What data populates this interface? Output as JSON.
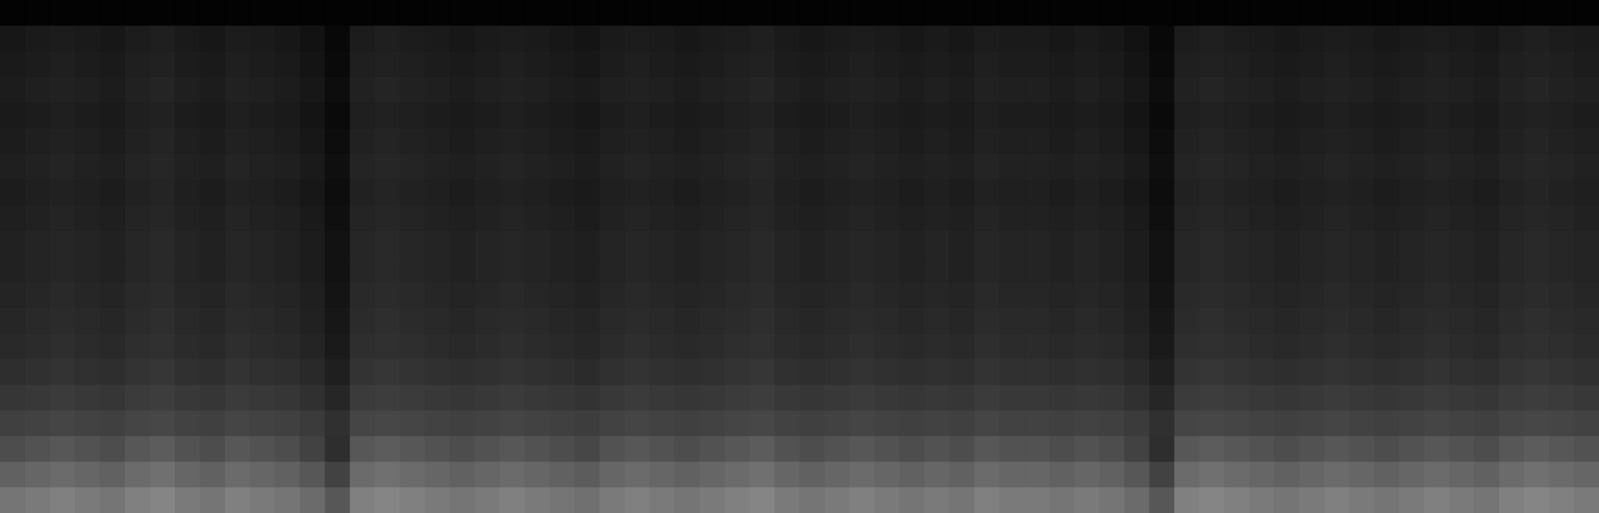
{
  "chart_data": {
    "type": "heatmap",
    "tick_labels": false,
    "zlim": [
      0,
      100
    ],
    "values": [
      [
        1,
        1,
        1,
        1,
        1,
        1,
        1,
        1,
        1,
        1,
        1,
        1,
        1,
        1,
        1,
        1,
        1,
        1,
        1,
        1,
        1,
        1,
        1,
        1,
        1,
        1,
        1,
        1,
        1,
        1,
        1,
        1,
        1,
        1,
        1,
        1,
        1,
        1,
        1,
        1,
        1,
        1,
        1,
        1,
        1,
        1,
        1,
        1,
        1,
        1,
        1,
        1,
        1,
        1,
        1,
        1,
        1,
        1,
        1,
        1,
        1,
        1,
        1,
        1
      ],
      [
        9,
        10,
        11,
        10,
        9,
        11,
        12,
        10,
        9,
        11,
        10,
        9,
        7,
        3,
        11,
        12,
        11,
        10,
        9,
        10,
        11,
        10,
        9,
        8,
        10,
        11,
        10,
        9,
        10,
        11,
        12,
        10,
        9,
        10,
        11,
        10,
        9,
        10,
        9,
        11,
        10,
        10,
        9,
        10,
        9,
        7,
        3,
        11,
        12,
        11,
        10,
        9,
        10,
        11,
        10,
        9,
        10,
        11,
        10,
        9,
        11,
        12,
        11,
        10
      ],
      [
        10,
        11,
        12,
        11,
        10,
        12,
        13,
        11,
        10,
        12,
        11,
        10,
        8,
        4,
        12,
        13,
        12,
        11,
        10,
        11,
        12,
        11,
        10,
        9,
        11,
        12,
        11,
        10,
        11,
        12,
        13,
        11,
        10,
        11,
        12,
        11,
        10,
        11,
        10,
        12,
        11,
        11,
        10,
        11,
        10,
        8,
        4,
        12,
        13,
        12,
        11,
        10,
        11,
        12,
        11,
        10,
        11,
        12,
        11,
        10,
        12,
        13,
        12,
        11
      ],
      [
        11,
        12,
        13,
        12,
        11,
        13,
        14,
        12,
        11,
        13,
        12,
        11,
        9,
        5,
        13,
        14,
        13,
        12,
        11,
        12,
        13,
        12,
        11,
        10,
        12,
        13,
        12,
        11,
        12,
        13,
        14,
        12,
        11,
        12,
        13,
        12,
        11,
        12,
        11,
        13,
        12,
        12,
        11,
        12,
        11,
        9,
        5,
        13,
        14,
        13,
        12,
        11,
        12,
        13,
        12,
        11,
        12,
        13,
        12,
        11,
        13,
        14,
        13,
        12
      ],
      [
        10,
        11,
        12,
        11,
        10,
        12,
        13,
        11,
        10,
        12,
        11,
        10,
        8,
        4,
        12,
        13,
        12,
        11,
        10,
        11,
        12,
        11,
        10,
        9,
        11,
        12,
        11,
        10,
        11,
        12,
        13,
        11,
        10,
        11,
        12,
        11,
        10,
        11,
        10,
        12,
        11,
        11,
        10,
        11,
        10,
        8,
        4,
        12,
        13,
        12,
        11,
        10,
        11,
        12,
        11,
        10,
        11,
        12,
        11,
        10,
        12,
        13,
        12,
        11
      ],
      [
        11,
        12,
        13,
        12,
        11,
        13,
        14,
        12,
        11,
        13,
        12,
        11,
        9,
        5,
        13,
        14,
        13,
        12,
        11,
        12,
        13,
        12,
        11,
        10,
        12,
        13,
        12,
        11,
        12,
        13,
        14,
        12,
        11,
        12,
        13,
        12,
        11,
        12,
        11,
        13,
        12,
        12,
        11,
        12,
        11,
        9,
        5,
        13,
        14,
        13,
        12,
        11,
        12,
        13,
        12,
        11,
        12,
        13,
        12,
        11,
        13,
        14,
        13,
        12
      ],
      [
        12,
        13,
        14,
        13,
        12,
        14,
        15,
        13,
        12,
        14,
        13,
        12,
        10,
        6,
        14,
        15,
        14,
        13,
        12,
        13,
        14,
        13,
        12,
        11,
        13,
        14,
        13,
        12,
        13,
        14,
        15,
        13,
        12,
        13,
        14,
        13,
        12,
        13,
        12,
        14,
        13,
        13,
        12,
        13,
        12,
        10,
        6,
        14,
        15,
        14,
        13,
        12,
        13,
        14,
        13,
        12,
        13,
        14,
        13,
        12,
        14,
        15,
        14,
        13
      ],
      [
        11,
        12,
        13,
        12,
        11,
        13,
        14,
        12,
        11,
        13,
        12,
        11,
        9,
        5,
        13,
        14,
        13,
        12,
        11,
        12,
        13,
        12,
        11,
        10,
        12,
        13,
        12,
        11,
        12,
        13,
        14,
        12,
        11,
        12,
        13,
        12,
        11,
        12,
        11,
        13,
        12,
        12,
        11,
        12,
        11,
        9,
        5,
        13,
        14,
        13,
        12,
        11,
        12,
        13,
        12,
        11,
        12,
        13,
        12,
        11,
        13,
        14,
        13,
        12
      ],
      [
        12,
        13,
        14,
        13,
        12,
        14,
        15,
        13,
        12,
        14,
        13,
        12,
        10,
        6,
        14,
        15,
        14,
        13,
        12,
        13,
        14,
        13,
        12,
        11,
        13,
        14,
        13,
        12,
        13,
        14,
        15,
        13,
        12,
        13,
        14,
        13,
        12,
        13,
        12,
        14,
        13,
        13,
        12,
        13,
        12,
        10,
        6,
        14,
        15,
        14,
        13,
        12,
        13,
        14,
        13,
        12,
        13,
        14,
        13,
        12,
        14,
        15,
        14,
        13
      ],
      [
        13,
        14,
        15,
        14,
        13,
        15,
        16,
        14,
        13,
        15,
        14,
        13,
        11,
        7,
        15,
        16,
        15,
        14,
        13,
        14,
        15,
        14,
        13,
        12,
        14,
        15,
        14,
        13,
        14,
        15,
        16,
        14,
        13,
        14,
        15,
        14,
        13,
        14,
        13,
        15,
        14,
        14,
        13,
        14,
        13,
        11,
        7,
        15,
        16,
        15,
        14,
        13,
        14,
        15,
        14,
        13,
        14,
        15,
        14,
        13,
        15,
        16,
        15,
        14
      ],
      [
        13,
        14,
        15,
        14,
        13,
        15,
        16,
        14,
        13,
        15,
        14,
        13,
        11,
        7,
        15,
        16,
        15,
        14,
        13,
        14,
        15,
        14,
        13,
        12,
        14,
        15,
        14,
        13,
        14,
        15,
        16,
        14,
        13,
        14,
        15,
        14,
        13,
        14,
        13,
        15,
        14,
        14,
        13,
        14,
        13,
        11,
        7,
        15,
        16,
        15,
        14,
        13,
        14,
        15,
        14,
        13,
        14,
        15,
        14,
        13,
        15,
        16,
        15,
        14
      ],
      [
        14,
        15,
        16,
        15,
        14,
        16,
        17,
        15,
        14,
        16,
        15,
        14,
        12,
        8,
        16,
        17,
        16,
        15,
        14,
        15,
        16,
        15,
        14,
        13,
        15,
        16,
        15,
        14,
        15,
        16,
        17,
        15,
        14,
        15,
        16,
        15,
        14,
        15,
        14,
        16,
        15,
        15,
        14,
        15,
        14,
        12,
        8,
        16,
        17,
        16,
        15,
        14,
        15,
        16,
        15,
        14,
        15,
        16,
        15,
        14,
        16,
        17,
        16,
        15
      ],
      [
        15,
        16,
        17,
        16,
        15,
        17,
        18,
        16,
        15,
        17,
        16,
        15,
        13,
        9,
        17,
        18,
        17,
        16,
        15,
        16,
        17,
        16,
        15,
        14,
        16,
        17,
        16,
        15,
        16,
        17,
        18,
        16,
        15,
        16,
        17,
        16,
        15,
        16,
        15,
        17,
        16,
        16,
        15,
        16,
        15,
        13,
        9,
        17,
        18,
        17,
        16,
        15,
        16,
        17,
        16,
        15,
        16,
        17,
        16,
        15,
        17,
        18,
        17,
        16
      ],
      [
        16,
        17,
        18,
        17,
        16,
        18,
        19,
        17,
        16,
        18,
        17,
        16,
        14,
        10,
        18,
        19,
        18,
        17,
        16,
        17,
        18,
        17,
        16,
        15,
        17,
        18,
        17,
        16,
        17,
        18,
        19,
        17,
        16,
        17,
        18,
        17,
        16,
        17,
        16,
        18,
        17,
        17,
        16,
        17,
        16,
        14,
        10,
        18,
        19,
        18,
        17,
        16,
        17,
        18,
        17,
        16,
        17,
        18,
        17,
        16,
        18,
        19,
        18,
        17
      ],
      [
        18,
        19,
        20,
        19,
        18,
        20,
        21,
        19,
        18,
        20,
        19,
        18,
        16,
        12,
        20,
        21,
        20,
        19,
        18,
        19,
        20,
        19,
        18,
        17,
        19,
        20,
        19,
        18,
        19,
        20,
        21,
        19,
        18,
        19,
        20,
        19,
        18,
        19,
        18,
        20,
        19,
        19,
        18,
        19,
        18,
        16,
        12,
        20,
        21,
        20,
        19,
        18,
        19,
        20,
        19,
        18,
        19,
        20,
        19,
        18,
        20,
        21,
        20,
        19
      ],
      [
        21,
        22,
        23,
        22,
        21,
        23,
        24,
        22,
        21,
        23,
        22,
        21,
        19,
        15,
        23,
        24,
        23,
        22,
        21,
        22,
        23,
        22,
        21,
        20,
        22,
        23,
        22,
        21,
        22,
        23,
        24,
        22,
        21,
        22,
        23,
        22,
        21,
        22,
        21,
        23,
        22,
        22,
        21,
        22,
        21,
        19,
        15,
        23,
        24,
        23,
        22,
        21,
        22,
        23,
        22,
        21,
        22,
        23,
        22,
        21,
        23,
        24,
        23,
        22
      ],
      [
        25,
        26,
        27,
        26,
        25,
        27,
        28,
        26,
        25,
        27,
        26,
        25,
        23,
        19,
        27,
        28,
        27,
        26,
        25,
        26,
        27,
        26,
        25,
        24,
        26,
        27,
        26,
        25,
        26,
        27,
        28,
        26,
        25,
        26,
        27,
        26,
        25,
        26,
        25,
        27,
        26,
        26,
        25,
        26,
        25,
        23,
        19,
        27,
        28,
        27,
        26,
        25,
        26,
        27,
        26,
        25,
        26,
        27,
        26,
        25,
        27,
        28,
        27,
        26
      ],
      [
        30,
        32,
        34,
        32,
        30,
        34,
        36,
        32,
        30,
        34,
        32,
        30,
        26,
        18,
        34,
        36,
        34,
        32,
        30,
        32,
        34,
        32,
        30,
        28,
        32,
        34,
        32,
        30,
        32,
        34,
        36,
        32,
        30,
        32,
        34,
        32,
        30,
        32,
        30,
        34,
        32,
        32,
        30,
        32,
        30,
        26,
        18,
        34,
        36,
        34,
        32,
        30,
        32,
        34,
        32,
        30,
        32,
        34,
        32,
        30,
        34,
        36,
        34,
        32
      ],
      [
        38,
        40,
        42,
        40,
        38,
        42,
        44,
        40,
        38,
        42,
        40,
        38,
        34,
        26,
        42,
        44,
        42,
        40,
        38,
        40,
        42,
        40,
        38,
        36,
        40,
        42,
        40,
        38,
        40,
        42,
        44,
        40,
        38,
        40,
        42,
        40,
        38,
        40,
        38,
        42,
        40,
        40,
        38,
        40,
        38,
        34,
        26,
        42,
        44,
        42,
        40,
        38,
        40,
        42,
        40,
        38,
        40,
        42,
        40,
        38,
        42,
        44,
        42,
        40
      ],
      [
        46,
        48,
        50,
        48,
        46,
        50,
        52,
        48,
        46,
        50,
        48,
        46,
        42,
        34,
        50,
        52,
        50,
        48,
        46,
        48,
        50,
        48,
        46,
        44,
        48,
        50,
        48,
        46,
        48,
        50,
        52,
        48,
        46,
        48,
        50,
        48,
        46,
        48,
        46,
        50,
        48,
        48,
        46,
        48,
        46,
        42,
        34,
        50,
        52,
        50,
        48,
        46,
        48,
        50,
        48,
        46,
        48,
        50,
        48,
        46,
        50,
        52,
        50,
        48
      ]
    ]
  }
}
